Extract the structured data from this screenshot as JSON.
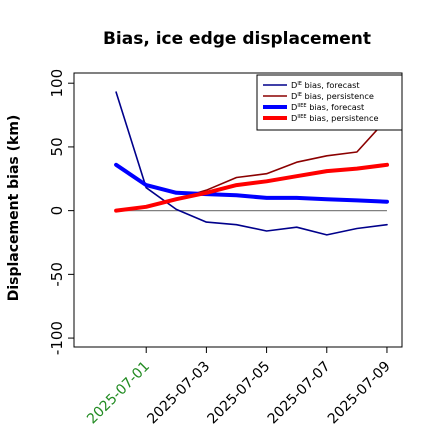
{
  "chart_data": {
    "type": "line",
    "title": "Bias, ice edge displacement",
    "xlabel": "",
    "ylabel": "Displacement bias (km)",
    "x_ticks": [
      "2025-07-01",
      "2025-07-03",
      "2025-07-05",
      "2025-07-07",
      "2025-07-09"
    ],
    "x_tick_colors": [
      "#228B22",
      "#000000",
      "#000000",
      "#000000",
      "#000000"
    ],
    "xlim_days": [
      -2.4,
      8.5
    ],
    "y_ticks": [
      100,
      50,
      0,
      -50,
      -100
    ],
    "ylim": [
      -107,
      108
    ],
    "zero_line": 0,
    "legend_position": "top-right",
    "series": [
      {
        "name": "Dᴵᴱ bias, forecast",
        "legend_main": "D",
        "legend_sup": "IE",
        "legend_rest": " bias, forecast",
        "color": "#00008B",
        "line_width": "thin",
        "x": [
          "2025-06-30",
          "2025-07-01",
          "2025-07-02",
          "2025-07-03",
          "2025-07-04",
          "2025-07-05",
          "2025-07-06",
          "2025-07-07",
          "2025-07-08",
          "2025-07-09"
        ],
        "values": [
          93,
          18,
          1,
          -9,
          -11,
          -16,
          -13,
          -19,
          -14,
          -11
        ]
      },
      {
        "name": "Dᴵᴱ bias, persistence",
        "legend_main": "D",
        "legend_sup": "IE",
        "legend_rest": " bias, persistence",
        "color": "#8B0000",
        "line_width": "thin",
        "x": [
          "2025-06-30",
          "2025-07-01",
          "2025-07-02",
          "2025-07-03",
          "2025-07-04",
          "2025-07-05",
          "2025-07-06",
          "2025-07-07",
          "2025-07-08",
          "2025-07-09"
        ],
        "values": [
          0,
          3,
          9,
          16,
          26,
          29,
          38,
          43,
          46,
          72
        ]
      },
      {
        "name": "Dᴵᴵᴱᴱ bias, forecast",
        "legend_main": "D",
        "legend_sup": "IIEE",
        "legend_rest": " bias, forecast",
        "color": "#0000FF",
        "line_width": "thick",
        "x": [
          "2025-06-30",
          "2025-07-01",
          "2025-07-02",
          "2025-07-03",
          "2025-07-04",
          "2025-07-05",
          "2025-07-06",
          "2025-07-07",
          "2025-07-08",
          "2025-07-09"
        ],
        "values": [
          36,
          20,
          14,
          13,
          12,
          10,
          10,
          9,
          8,
          7
        ]
      },
      {
        "name": "Dᴵᴵᴱᴱ bias, persistence",
        "legend_main": "D",
        "legend_sup": "IIEE",
        "legend_rest": " bias, persistence",
        "color": "#FF0000",
        "line_width": "thick",
        "x": [
          "2025-06-30",
          "2025-07-01",
          "2025-07-02",
          "2025-07-03",
          "2025-07-04",
          "2025-07-05",
          "2025-07-06",
          "2025-07-07",
          "2025-07-08",
          "2025-07-09"
        ],
        "values": [
          0,
          3,
          9,
          14,
          20,
          23,
          27,
          31,
          33,
          36
        ]
      }
    ]
  }
}
